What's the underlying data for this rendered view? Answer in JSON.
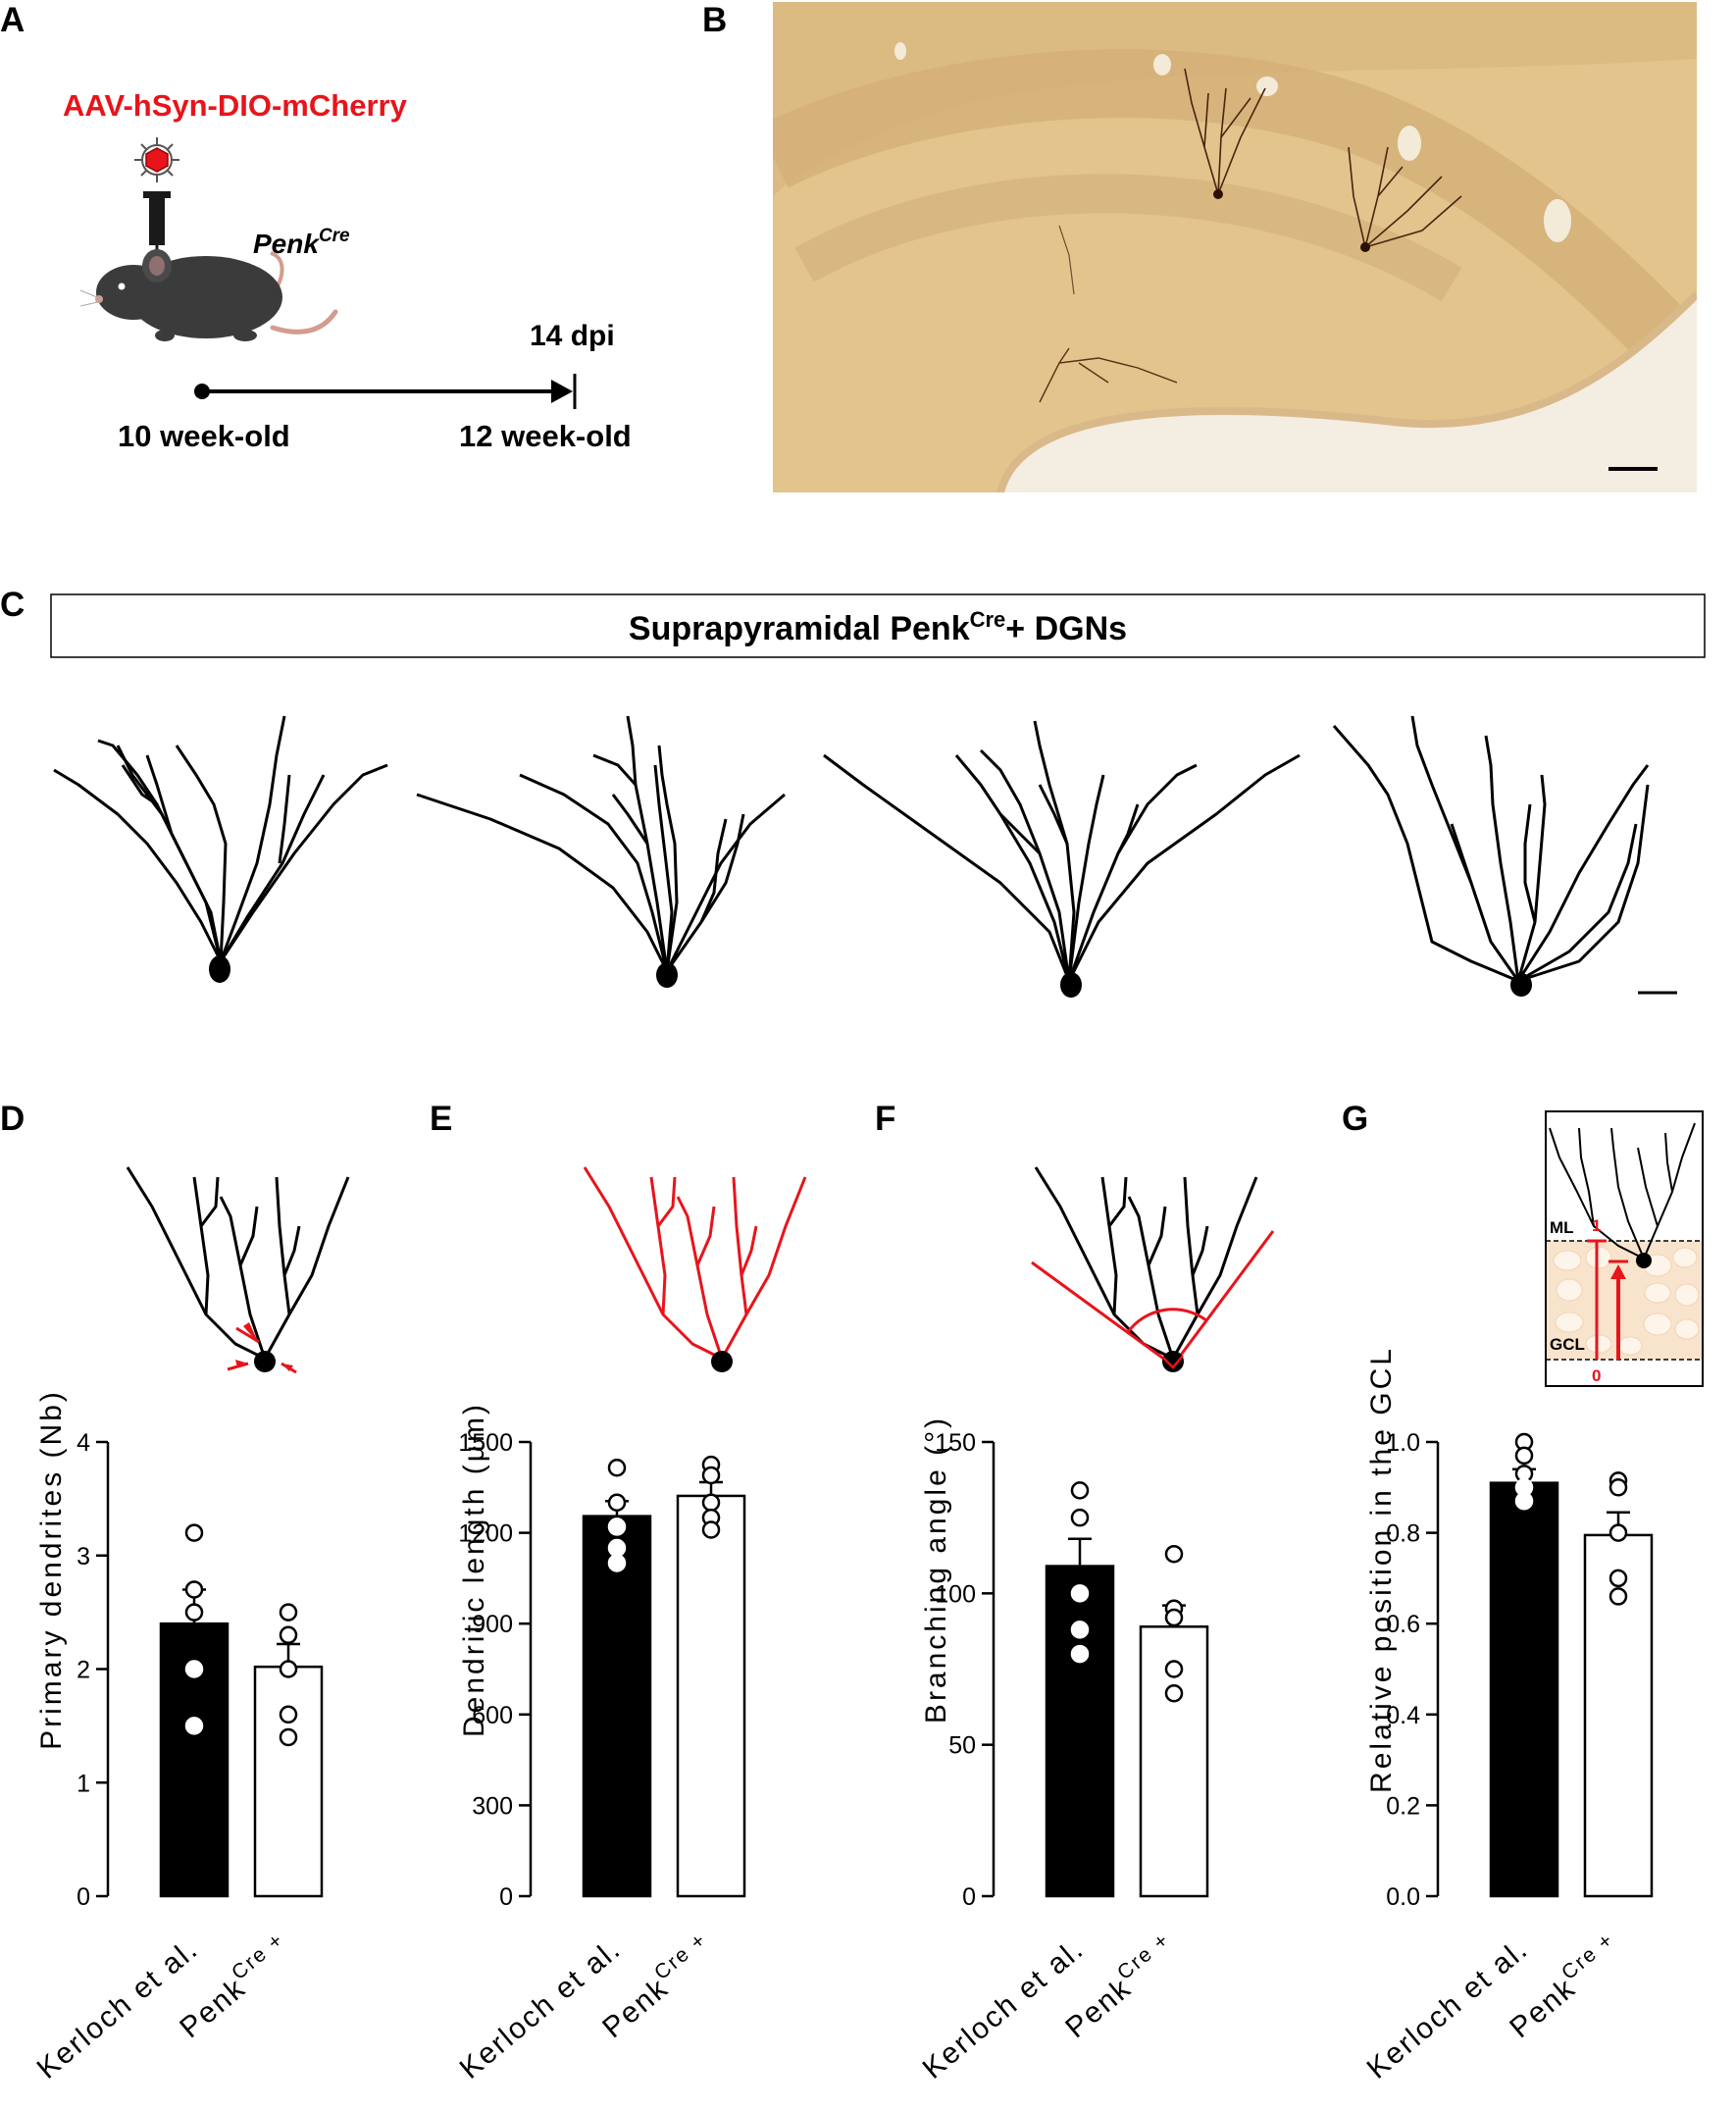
{
  "panel_labels": {
    "a": "A",
    "b": "B",
    "c": "C",
    "d": "D",
    "e": "E",
    "f": "F",
    "g": "G"
  },
  "panel_a": {
    "virus": "AAV-hSyn-DIO-mCherry",
    "mouse_line": "Penk",
    "mouse_line_sup": "Cre",
    "end_label": "14 dpi",
    "start_age": "10 week-old",
    "end_age": "12 week-old"
  },
  "panel_c": {
    "title_prefix": "Suprapyramidal Penk",
    "title_sup": "Cre",
    "title_suffix": "+ DGNs"
  },
  "panel_g_schematic": {
    "top_layer": "ML",
    "bottom_layer": "GCL",
    "top_value": "1",
    "bottom_value": "0"
  },
  "colors": {
    "bar_1": "#000000",
    "bar_2": "#ffffff",
    "accent": "#e8141b",
    "tissue": "#e2c48c",
    "gcl_fill": "#f8e3cc"
  },
  "chart_data": [
    {
      "type": "bar",
      "panel": "D",
      "categories": [
        "Kerloch et al.",
        "Penk"
      ],
      "category_superscripts": [
        "",
        "Cre +"
      ],
      "values": [
        2.4,
        2.02
      ],
      "errors": [
        0.3,
        0.2
      ],
      "points": [
        [
          3.2,
          2.7,
          2.5,
          2.0,
          1.5
        ],
        [
          2.5,
          2.3,
          2.0,
          1.6,
          1.4
        ]
      ],
      "ylabel": "Primary dendrites (Nb)",
      "ylim": [
        0,
        4
      ],
      "yticks": [
        "0",
        "1",
        "2",
        "3",
        "4"
      ]
    },
    {
      "type": "bar",
      "panel": "E",
      "categories": [
        "Kerloch et al.",
        "Penk"
      ],
      "category_superscripts": [
        "",
        "Cre +"
      ],
      "values": [
        1255,
        1322
      ],
      "errors": [
        50,
        45
      ],
      "points": [
        [
          1415,
          1300,
          1220,
          1150,
          1100
        ],
        [
          1425,
          1390,
          1300,
          1250,
          1210
        ]
      ],
      "ylabel": "Dendritic length (µm)",
      "ylim": [
        0,
        1500
      ],
      "yticks": [
        "0",
        "300",
        "600",
        "900",
        "1200",
        "1500"
      ]
    },
    {
      "type": "bar",
      "panel": "F",
      "categories": [
        "Kerloch et al.",
        "Penk"
      ],
      "category_superscripts": [
        "",
        "Cre +"
      ],
      "values": [
        109,
        89
      ],
      "errors": [
        9,
        7
      ],
      "points": [
        [
          134,
          125,
          100,
          88,
          80
        ],
        [
          113,
          95,
          92,
          75,
          67
        ]
      ],
      "ylabel": "Branching angle (°)",
      "ylim": [
        0,
        150
      ],
      "yticks": [
        "0",
        "50",
        "100",
        "150"
      ]
    },
    {
      "type": "bar",
      "panel": "G",
      "categories": [
        "Kerloch et al.",
        "Penk"
      ],
      "category_superscripts": [
        "",
        "Cre +"
      ],
      "values": [
        0.91,
        0.795
      ],
      "errors": [
        0.03,
        0.05
      ],
      "points": [
        [
          1.0,
          0.97,
          0.93,
          0.9,
          0.87
        ],
        [
          0.915,
          0.9,
          0.8,
          0.7,
          0.66
        ]
      ],
      "ylabel": "Relative position in the GCL",
      "ylim": [
        0,
        1
      ],
      "yticks": [
        "0.0",
        "0.2",
        "0.4",
        "0.6",
        "0.8",
        "1.0"
      ]
    }
  ]
}
